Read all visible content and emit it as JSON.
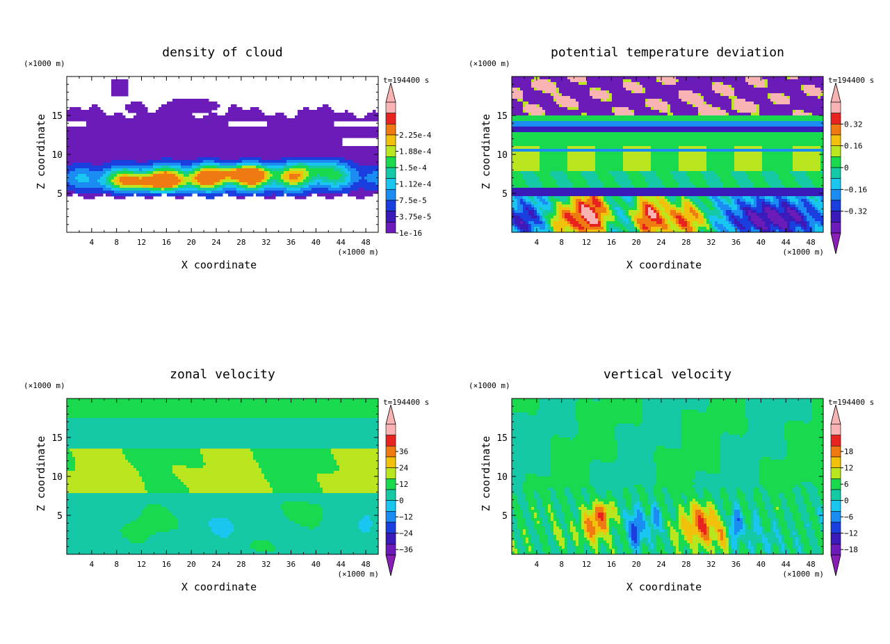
{
  "panels": [
    {
      "title": "density of cloud",
      "unit_label": "(×1000 m)",
      "time_label": "t=194400 s",
      "xlabel": "X coordinate",
      "ylabel": "Z coordinate",
      "xticks": [
        "4",
        "8",
        "12",
        "16",
        "20",
        "24",
        "28",
        "32",
        "36",
        "40",
        "44",
        "48"
      ],
      "yticks": [
        "5",
        "10",
        "15"
      ],
      "colorbar_labels": [
        "2.25e-4",
        "1.88e-4",
        "1.5e-4",
        "1.12e-4",
        "7.5e-5",
        "3.75e-5",
        "1e-16"
      ],
      "colorbar_colors": [
        "#f9b3b3",
        "#e8231f",
        "#f07a12",
        "#f2c10c",
        "#b9e61e",
        "#19d94e",
        "#16c9a6",
        "#19c6f0",
        "#1a8cf2",
        "#1a3fde",
        "#3a1ab9",
        "#6a1bb8"
      ],
      "field": "cloud"
    },
    {
      "title": "potential temperature deviation",
      "unit_label": "(×1000 m)",
      "time_label": "t=194400 s",
      "xlabel": "X coordinate",
      "ylabel": "Z coordinate",
      "xticks": [
        "4",
        "8",
        "12",
        "16",
        "20",
        "24",
        "28",
        "32",
        "36",
        "40",
        "44",
        "48"
      ],
      "yticks": [
        "5",
        "10",
        "15"
      ],
      "colorbar_labels": [
        "0.32",
        "0.16",
        "0",
        "−0.16",
        "−0.32"
      ],
      "colorbar_colors": [
        "#f9b3b3",
        "#e8231f",
        "#f07a12",
        "#f2c10c",
        "#b9e61e",
        "#19d94e",
        "#16c9a6",
        "#19c6f0",
        "#1a8cf2",
        "#1a3fde",
        "#3a1ab9",
        "#6a1bb8"
      ],
      "field": "theta"
    },
    {
      "title": "zonal velocity",
      "unit_label": "(×1000 m)",
      "time_label": "t=194400 s",
      "xlabel": "X coordinate",
      "ylabel": "Z coordinate",
      "xticks": [
        "4",
        "8",
        "12",
        "16",
        "20",
        "24",
        "28",
        "32",
        "36",
        "40",
        "44",
        "48"
      ],
      "yticks": [
        "5",
        "10",
        "15"
      ],
      "colorbar_labels": [
        "36",
        "24",
        "12",
        "0",
        "−12",
        "−24",
        "−36"
      ],
      "colorbar_colors": [
        "#f9b3b3",
        "#e8231f",
        "#f07a12",
        "#f2c10c",
        "#b9e61e",
        "#19d94e",
        "#16c9a6",
        "#19c6f0",
        "#1a8cf2",
        "#1a3fde",
        "#3a1ab9",
        "#6a1bb8"
      ],
      "field": "u"
    },
    {
      "title": "vertical velocity",
      "unit_label": "(×1000 m)",
      "time_label": "t=194400 s",
      "xlabel": "X coordinate",
      "ylabel": "Z coordinate",
      "xticks": [
        "4",
        "8",
        "12",
        "16",
        "20",
        "24",
        "28",
        "32",
        "36",
        "40",
        "44",
        "48"
      ],
      "yticks": [
        "5",
        "10",
        "15"
      ],
      "colorbar_labels": [
        "18",
        "12",
        "6",
        "0",
        "−6",
        "−12",
        "−18"
      ],
      "colorbar_colors": [
        "#f9b3b3",
        "#e8231f",
        "#f07a12",
        "#f2c10c",
        "#b9e61e",
        "#19d94e",
        "#16c9a6",
        "#19c6f0",
        "#1a8cf2",
        "#1a3fde",
        "#3a1ab9",
        "#6a1bb8"
      ],
      "field": "w"
    }
  ],
  "chart_data": [
    {
      "type": "heatmap",
      "title": "density of cloud",
      "xlabel": "X coordinate",
      "ylabel": "Z coordinate",
      "xlim": [
        0,
        50
      ],
      "ylim": [
        0,
        20
      ],
      "x_unit": "(×1000 m)",
      "colorbar_levels": [
        "2.25e-4",
        "1.88e-4",
        "1.5e-4",
        "1.12e-4",
        "7.5e-5",
        "3.75e-5",
        "1e-16"
      ],
      "time": "t=194400 s"
    },
    {
      "type": "heatmap",
      "title": "potential temperature deviation",
      "xlabel": "X coordinate",
      "ylabel": "Z coordinate",
      "xlim": [
        0,
        50
      ],
      "ylim": [
        0,
        20
      ],
      "x_unit": "(×1000 m)",
      "colorbar_levels": [
        0.32,
        0.16,
        0,
        -0.16,
        -0.32
      ],
      "time": "t=194400 s"
    },
    {
      "type": "heatmap",
      "title": "zonal velocity",
      "xlabel": "X coordinate",
      "ylabel": "Z coordinate",
      "xlim": [
        0,
        50
      ],
      "ylim": [
        0,
        20
      ],
      "x_unit": "(×1000 m)",
      "colorbar_levels": [
        36,
        24,
        12,
        0,
        -12,
        -24,
        -36
      ],
      "time": "t=194400 s"
    },
    {
      "type": "heatmap",
      "title": "vertical velocity",
      "xlabel": "X coordinate",
      "ylabel": "Z coordinate",
      "xlim": [
        0,
        50
      ],
      "ylim": [
        0,
        20
      ],
      "x_unit": "(×1000 m)",
      "colorbar_levels": [
        18,
        12,
        6,
        0,
        -6,
        -12,
        -18
      ],
      "time": "t=194400 s"
    }
  ]
}
